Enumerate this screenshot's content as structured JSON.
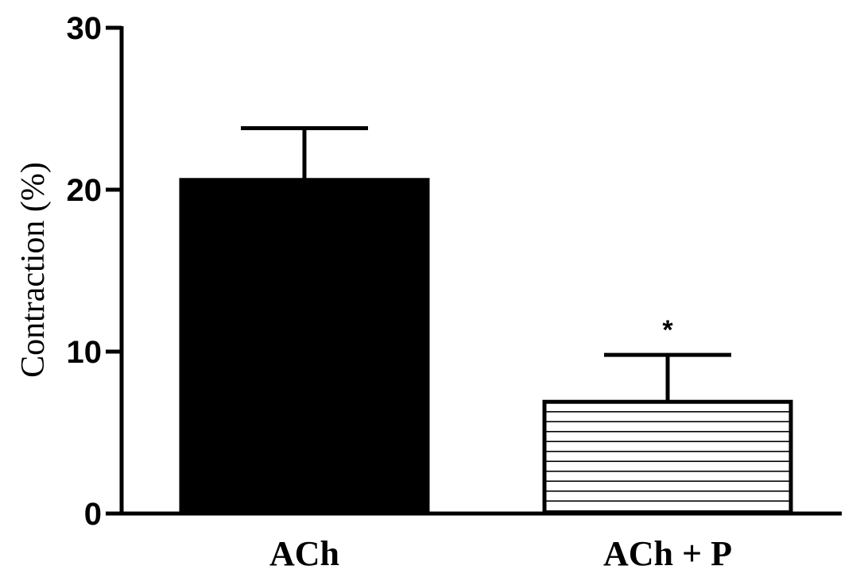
{
  "chart_data": {
    "type": "bar",
    "categories": [
      "ACh",
      "ACh + P"
    ],
    "values": [
      20.6,
      6.9
    ],
    "error_upper": [
      3.2,
      2.9
    ],
    "annotations": [
      "",
      "*"
    ],
    "bar_styles": [
      "solid",
      "horizontal-hatch"
    ],
    "title": "",
    "xlabel": "",
    "ylabel": "Contraction (%)",
    "ylim": [
      0,
      30
    ],
    "yticks": [
      "0",
      "10",
      "20",
      "30"
    ],
    "grid": false,
    "legend": "none",
    "colors": {
      "bar_fill": "#000000",
      "hatch_fill": "#ffffff",
      "stroke": "#000000"
    }
  }
}
